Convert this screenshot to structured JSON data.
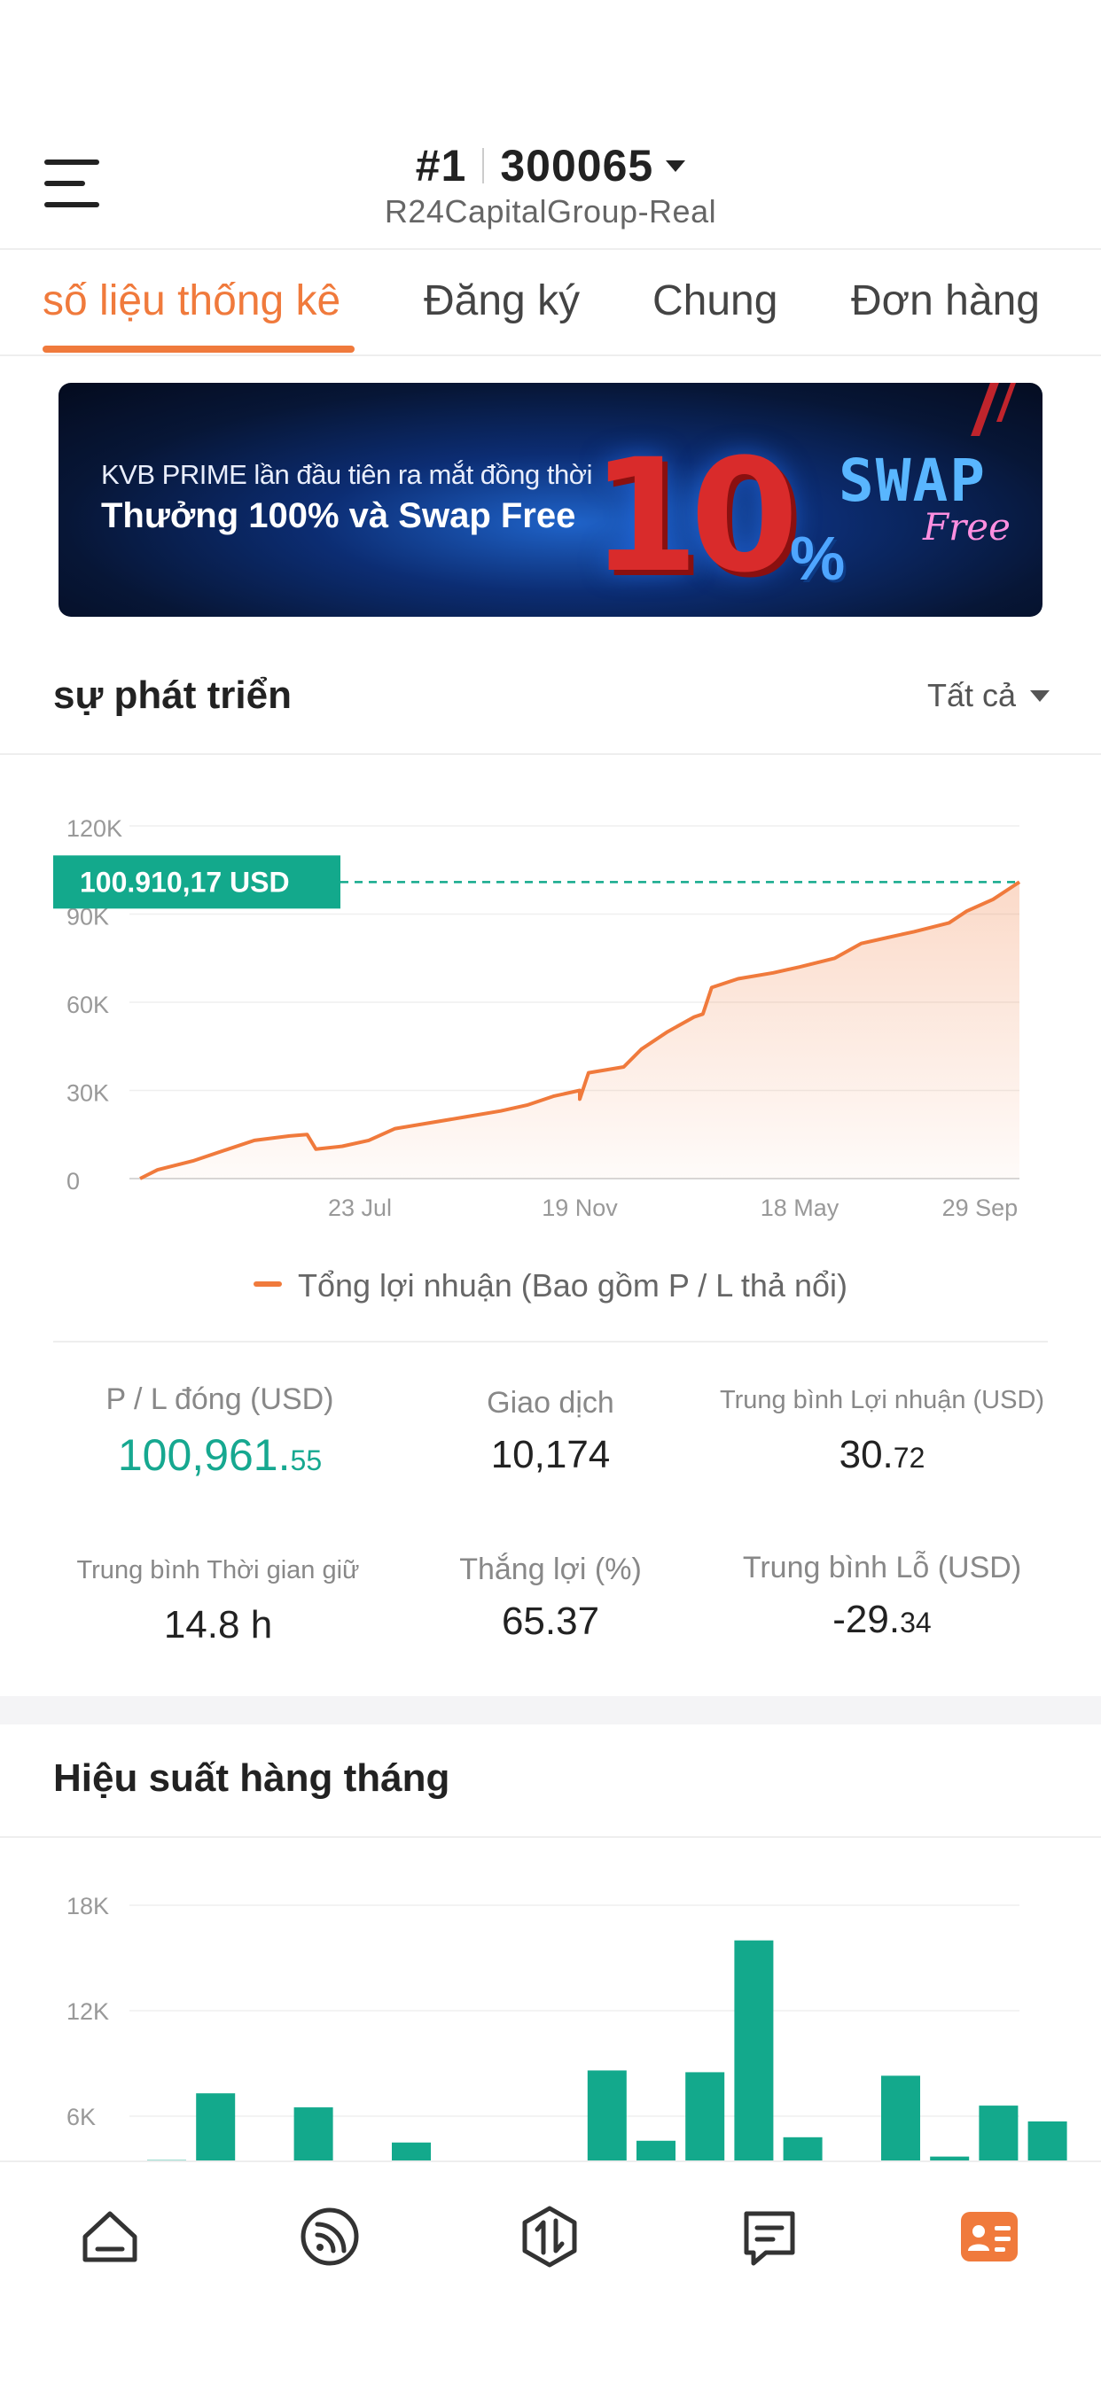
{
  "header": {
    "rank": "#1",
    "account_number": "300065",
    "server": "R24CapitalGroup-Real"
  },
  "tabs": [
    {
      "label": "số liệu thống kê",
      "active": true
    },
    {
      "label": "Đăng ký",
      "active": false
    },
    {
      "label": "Chung",
      "active": false
    },
    {
      "label": "Đơn hàng",
      "active": false
    }
  ],
  "banner": {
    "line1": "KVB PRIME lần đầu tiên ra mắt đồng thời",
    "line2": "Thưởng 100% và Swap Free",
    "big_number": "10",
    "percent": "%",
    "swap": "SWAP",
    "free": "Free"
  },
  "growth": {
    "title": "sự phát triển",
    "filter": "Tất cả",
    "current_label": "100.910,17  USD",
    "legend": "Tổng lợi nhuận (Bao gồm P / L thả nổi)"
  },
  "stats": {
    "closed_pl_label": "P / L đóng (USD)",
    "closed_pl_int": "100,961.",
    "closed_pl_dec": "55",
    "trades_label": "Giao dịch",
    "trades_value": "10,174",
    "avg_profit_label": "Trung bình Lợi nhuận (USD)",
    "avg_profit_int": "30.",
    "avg_profit_dec": "72",
    "avg_hold_label": "Trung bình Thời gian giữ",
    "avg_hold_value": "14.8 h",
    "win_label": "Thắng lợi (%)",
    "win_value": "65.37",
    "avg_loss_label": "Trung bình Lỗ (USD)",
    "avg_loss_int": "-29.",
    "avg_loss_dec": "34"
  },
  "monthly": {
    "title": "Hiệu suất hàng tháng"
  },
  "colors": {
    "accent": "#f07a3c",
    "green": "#16a890",
    "tag_green": "#13a98c"
  },
  "nav": [
    {
      "icon": "home-icon",
      "active": false
    },
    {
      "icon": "broadcast-icon",
      "active": false
    },
    {
      "icon": "trade-icon",
      "active": false
    },
    {
      "icon": "message-icon",
      "active": false
    },
    {
      "icon": "profile-card-icon",
      "active": true
    }
  ],
  "chart_data": [
    {
      "type": "area",
      "title": "",
      "xlabel": "",
      "ylabel": "",
      "y_ticks": [
        "0",
        "30K",
        "60K",
        "90K",
        "120K"
      ],
      "x_ticks": [
        "23 Jul",
        "19 Nov",
        "18 May",
        "29 Sep"
      ],
      "ylim": [
        0,
        120000
      ],
      "grid": true,
      "series": [
        {
          "name": "Tổng lợi nhuận (Bao gồm P / L thả nổi)",
          "points": [
            [
              0,
              0
            ],
            [
              0.02,
              3000
            ],
            [
              0.06,
              6000
            ],
            [
              0.1,
              10000
            ],
            [
              0.13,
              13000
            ],
            [
              0.17,
              14500
            ],
            [
              0.19,
              15000
            ],
            [
              0.2,
              10000
            ],
            [
              0.23,
              11000
            ],
            [
              0.26,
              13000
            ],
            [
              0.29,
              17000
            ],
            [
              0.33,
              19000
            ],
            [
              0.37,
              21000
            ],
            [
              0.41,
              23000
            ],
            [
              0.44,
              25000
            ],
            [
              0.47,
              28000
            ],
            [
              0.5,
              30000
            ],
            [
              0.5,
              27000
            ],
            [
              0.51,
              36000
            ],
            [
              0.55,
              38000
            ],
            [
              0.57,
              44000
            ],
            [
              0.6,
              50000
            ],
            [
              0.63,
              55000
            ],
            [
              0.64,
              56000
            ],
            [
              0.65,
              65000
            ],
            [
              0.68,
              68000
            ],
            [
              0.72,
              70000
            ],
            [
              0.75,
              72000
            ],
            [
              0.79,
              75000
            ],
            [
              0.82,
              80000
            ],
            [
              0.85,
              82000
            ],
            [
              0.88,
              84000
            ],
            [
              0.92,
              87000
            ],
            [
              0.94,
              91000
            ],
            [
              0.97,
              95000
            ],
            [
              1.0,
              100910
            ]
          ]
        }
      ]
    },
    {
      "type": "bar",
      "title": "",
      "y_ticks": [
        "6K",
        "12K",
        "18K"
      ],
      "ylim_visible": [
        3000,
        18000
      ],
      "series": [
        {
          "name": "",
          "values": [
            3500,
            7300,
            0,
            6500,
            0,
            4500,
            0,
            0,
            0,
            8600,
            4600,
            8500,
            16000,
            4800,
            0,
            8300,
            3700,
            6600,
            5700
          ]
        }
      ]
    }
  ]
}
